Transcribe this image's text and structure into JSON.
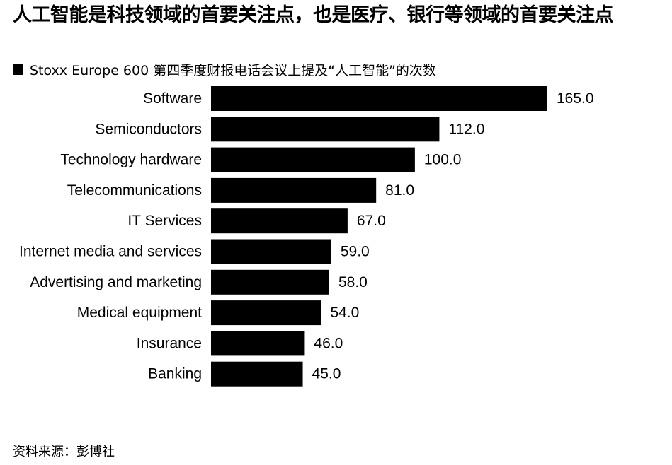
{
  "header": {
    "title": "人工智能是科技领域的首要关注点，也是医疗、银行等领域的首要关注点"
  },
  "legend": {
    "series_label": "Stoxx Europe 600 第四季度财报电话会议上提及“人工智能”的次数"
  },
  "footer": {
    "source": "资料来源：彭博社"
  },
  "colors": {
    "bar": "#000000",
    "background": "#ffffff"
  },
  "chart_data": {
    "type": "bar",
    "orientation": "horizontal",
    "categories": [
      "Software",
      "Semiconductors",
      "Technology hardware",
      "Telecommunications",
      "IT Services",
      "Internet media and services",
      "Advertising and marketing",
      "Medical equipment",
      "Insurance",
      "Banking"
    ],
    "series": [
      {
        "name": "Stoxx Europe 600 第四季度财报电话会议上提及“人工智能”的次数",
        "values": [
          165.0,
          112.0,
          100.0,
          81.0,
          67.0,
          59.0,
          58.0,
          54.0,
          46.0,
          45.0
        ]
      }
    ],
    "value_labels": [
      "165.0",
      "112.0",
      "100.0",
      "81.0",
      "67.0",
      "59.0",
      "58.0",
      "54.0",
      "46.0",
      "45.0"
    ],
    "xlim": [
      0,
      165
    ],
    "grid": false,
    "legend_position": "top-left"
  }
}
